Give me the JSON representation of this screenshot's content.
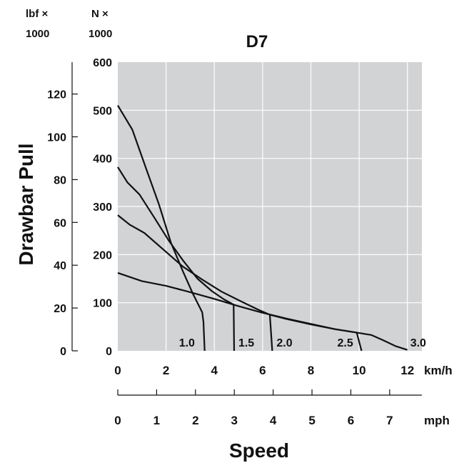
{
  "chart_data": {
    "type": "line",
    "title": "D7",
    "ylabel": "Drawbar Pull",
    "xlabel": "Speed",
    "y_unit_left": [
      "lbf ×",
      "1000"
    ],
    "y_unit_right": [
      "N ×",
      "1000"
    ],
    "x_unit_top": "km/h",
    "x_unit_bottom": "mph",
    "xlim": [
      0,
      12.6
    ],
    "ylim": [
      0,
      600
    ],
    "kmh_ticks": [
      "0",
      "2",
      "4",
      "6",
      "8",
      "10",
      "12"
    ],
    "mph_ticks": [
      "0",
      "1",
      "2",
      "3",
      "4",
      "5",
      "6",
      "7"
    ],
    "N_ticks": [
      "0",
      "100",
      "200",
      "300",
      "400",
      "500",
      "600"
    ],
    "lbf_ticks": [
      "0",
      "20",
      "40",
      "60",
      "80",
      "100",
      "120"
    ],
    "grid": true,
    "series": [
      {
        "name": "1.0",
        "x": [
          0,
          0.6,
          1.2,
          1.7,
          2.2,
          2.7,
          3.1,
          3.5,
          3.55,
          3.6
        ],
        "y": [
          510,
          460,
          375,
          305,
          225,
          165,
          120,
          80,
          60,
          0
        ]
      },
      {
        "name": "1.5",
        "x": [
          0,
          0.4,
          0.9,
          1.5,
          2.1,
          2.7,
          3.3,
          3.9,
          4.4,
          4.8,
          4.82
        ],
        "y": [
          382,
          350,
          325,
          278,
          230,
          188,
          150,
          124,
          107,
          96,
          0
        ]
      },
      {
        "name": "2.0",
        "x": [
          0,
          0.5,
          1.1,
          1.9,
          2.7,
          3.5,
          4.3,
          5.1,
          5.8,
          6.3,
          6.4
        ],
        "y": [
          282,
          262,
          245,
          210,
          175,
          148,
          123,
          103,
          86,
          75,
          0
        ]
      },
      {
        "name": "2.5",
        "x": [
          0,
          1,
          2,
          3,
          4,
          5,
          6,
          7,
          8,
          9,
          9.9,
          10.1
        ],
        "y": [
          162,
          145,
          135,
          122,
          108,
          93,
          79,
          67,
          56,
          45,
          38,
          0
        ]
      },
      {
        "name": "3.0",
        "x": [
          6.3,
          7,
          8,
          9,
          10,
          10.5,
          11,
          11.5,
          12
        ],
        "y": [
          75,
          66,
          55,
          45,
          37,
          33,
          22,
          10,
          2
        ]
      }
    ]
  }
}
